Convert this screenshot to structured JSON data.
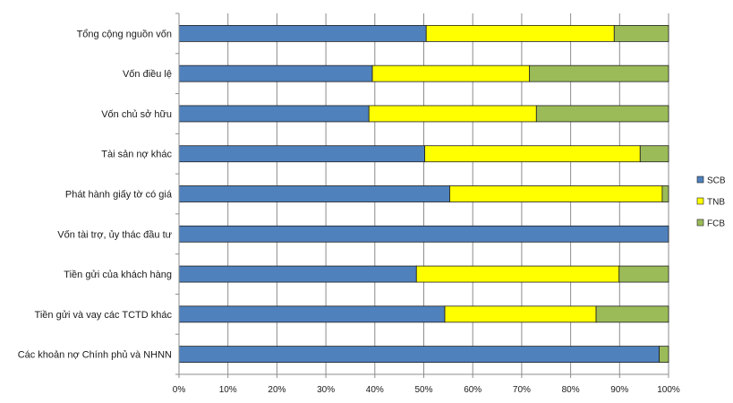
{
  "chart_data": {
    "type": "bar",
    "orientation": "horizontal",
    "stacked": "percent",
    "title": "",
    "xlabel": "",
    "ylabel": "",
    "xlim": [
      0,
      100
    ],
    "x_ticks": [
      "0%",
      "10%",
      "20%",
      "30%",
      "40%",
      "50%",
      "60%",
      "70%",
      "80%",
      "90%",
      "100%"
    ],
    "grid": {
      "vertical": true,
      "horizontal": false
    },
    "legend": {
      "position": "right"
    },
    "categories": [
      "Tổng cộng nguồn vốn",
      "Vốn điều lệ",
      "Vốn chủ sở hữu",
      "Tài sản nợ khác",
      "Phát hành giấy tờ có giá",
      "Vốn tài trợ, ủy thác đầu tư",
      "Tiền gửi của khách hàng",
      "Tiền gửi và vay các TCTD khác",
      "Các khoản nợ Chính phủ và NHNN"
    ],
    "series": [
      {
        "name": "SCB",
        "color": "#4F81BD",
        "values": [
          50.5,
          39.5,
          38.8,
          50.2,
          55.3,
          100,
          48.5,
          54.3,
          98.1
        ]
      },
      {
        "name": "TNB",
        "color": "#FFFF00",
        "values": [
          38.4,
          32.1,
          34.2,
          44.0,
          43.4,
          0,
          41.4,
          30.9,
          0
        ]
      },
      {
        "name": "FCB",
        "color": "#9BBB59",
        "values": [
          11.1,
          28.4,
          27.0,
          5.8,
          1.3,
          0,
          10.1,
          14.8,
          1.9
        ]
      }
    ]
  }
}
